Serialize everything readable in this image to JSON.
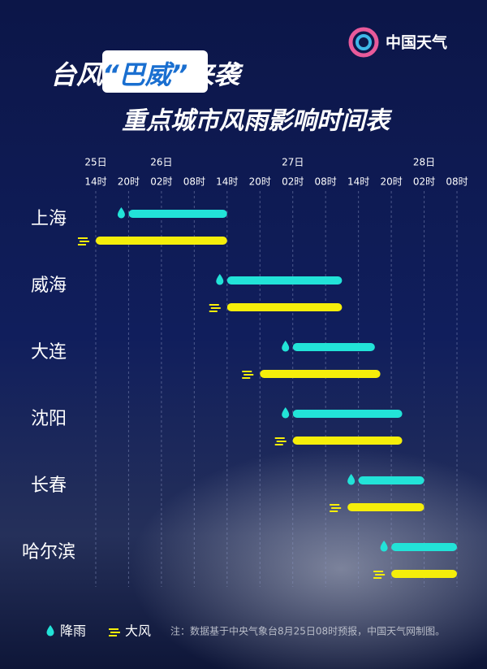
{
  "chart_data": {
    "type": "gantt",
    "logo": "中国天气",
    "title": [
      "台风",
      "“巴威”",
      "来袭"
    ],
    "subtitle": "重点城市风雨影响时间表",
    "categories": [
      "上海",
      "威海",
      "大连",
      "沈阳",
      "长春",
      "哈尔滨"
    ],
    "series": [
      {
        "name": "降雨",
        "color": "#22e3d8",
        "values": [
          [
            20,
            38
          ],
          [
            38,
            59
          ],
          [
            50,
            65
          ],
          [
            50,
            70
          ],
          [
            62,
            74
          ],
          [
            68,
            80
          ]
        ]
      },
      {
        "name": "大风",
        "color": "#f5ee0a",
        "values": [
          [
            14,
            38
          ],
          [
            38,
            59
          ],
          [
            44,
            66
          ],
          [
            50,
            70
          ],
          [
            60,
            74
          ],
          [
            68,
            80
          ]
        ]
      }
    ],
    "xlim": [
      8,
      82
    ],
    "xticks": [
      {
        "value": 14,
        "label": "14时"
      },
      {
        "value": 20,
        "label": "20时"
      },
      {
        "value": 26,
        "label": "02时"
      },
      {
        "value": 32,
        "label": "08时"
      },
      {
        "value": 38,
        "label": "14时"
      },
      {
        "value": 44,
        "label": "20时"
      },
      {
        "value": 50,
        "label": "02时"
      },
      {
        "value": 56,
        "label": "08时"
      },
      {
        "value": 62,
        "label": "14时"
      },
      {
        "value": 68,
        "label": "20时"
      },
      {
        "value": 74,
        "label": "02时"
      },
      {
        "value": 80,
        "label": "08时"
      }
    ],
    "date_ticks": [
      {
        "value": 14,
        "label": "25日"
      },
      {
        "value": 26,
        "label": "26日"
      },
      {
        "value": 50,
        "label": "27日"
      },
      {
        "value": 74,
        "label": "28日"
      }
    ],
    "grid": true,
    "note": "注：数据基于中央气象台8月25日08时预报，中国天气网制图。"
  }
}
